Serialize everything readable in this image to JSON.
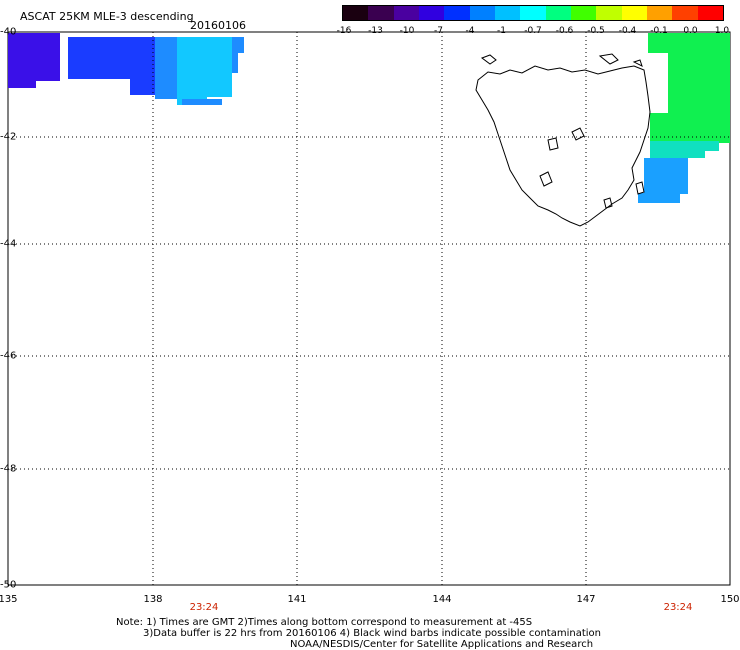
{
  "title": "ASCAT 25KM MLE-3 descending",
  "date": "20160106",
  "colorbar": {
    "labels": [
      "-16",
      "-13",
      "-10",
      "-7",
      "-4",
      "-1",
      "-0.7",
      "-0.6",
      "-0.5",
      "-0.4",
      "-0.1",
      "0.0",
      "1.0"
    ],
    "colors": [
      "#1a0010",
      "#3a0050",
      "#4a00a0",
      "#3000e0",
      "#0030ff",
      "#0080ff",
      "#00c0ff",
      "#00ffff",
      "#00ff80",
      "#40ff00",
      "#c0ff00",
      "#ffff00",
      "#ffa000",
      "#ff4000",
      "#ff0000"
    ]
  },
  "lat_labels": [
    "-40",
    "-42",
    "-44",
    "-46",
    "-48",
    "-50"
  ],
  "lon_labels": [
    "135",
    "138",
    "141",
    "144",
    "147",
    "150"
  ],
  "time_labels": [
    "23:24",
    "23:24"
  ],
  "notes": {
    "line1": "Note: 1) Times are GMT 2)Times along bottom correspond to measurement at -45S",
    "line2": "3)Data buffer is 22 hrs from 20160106 4) Black wind barbs indicate possible contamination",
    "line3": "NOAA/NESDIS/Center for Satellite Applications and Research"
  },
  "swath_colors": {
    "west_deep": "#3a10e8",
    "west_blue": "#1a3cff",
    "west_light": "#1e8cff",
    "west_cyan": "#12c8ff",
    "east_green": "#10f050",
    "east_cyan": "#10e0c0",
    "east_blue": "#1aa0ff"
  }
}
